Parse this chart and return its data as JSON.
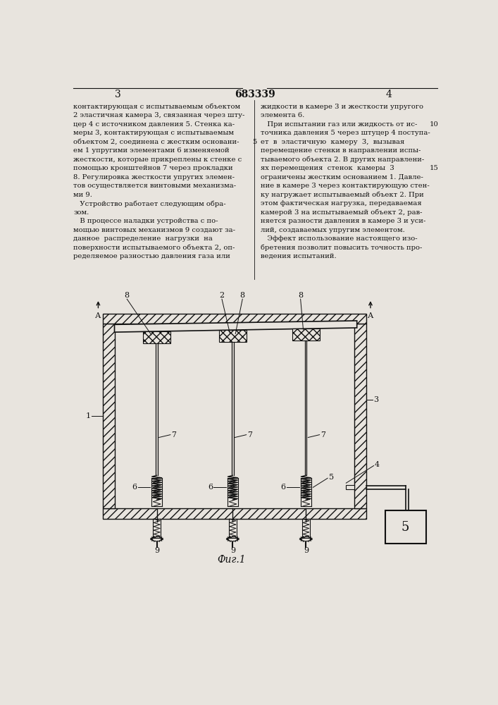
{
  "page_width": 7.07,
  "page_height": 10.0,
  "bg_color": "#e8e4de",
  "text_color": "#111111",
  "line_color": "#111111",
  "fig_caption": "Фиг.1",
  "left_text": [
    "контактирующая с испытываемым объектом",
    "2 эластичная камера 3, связанная через шту-",
    "цер 4 с источником давления 5. Стенка ка-",
    "меры 3, контактирующая с испытываемым",
    "объектом 2, соединена с жестким основани-",
    "ем 1 упругими элементами 6 изменяемой",
    "жесткости, которые прикреплены к стенке с",
    "помощью кронштейнов 7 через прокладки",
    "8. Регулировка жесткости упругих элемен-",
    "тов осуществляется винтовыми механизма-",
    "ми 9.",
    "   Устройство работает следующим обра-",
    "зом.",
    "   В процессе наладки устройства с по-",
    "мощью винтовых механизмов 9 создают за-",
    "данное  распределение  нагрузки  на",
    "поверхности испытываемого объекта 2, оп-",
    "ределяемое разностью давления газа или"
  ],
  "right_text": [
    "жидкости в камере 3 и жесткости упругого",
    "элемента 6.",
    "   При испытании газ или жидкость от ис-",
    "точника давления 5 через штуцер 4 поступа-",
    "ет  в  эластичную  камеру  3,  вызывая",
    "перемещение стенки в направлении испы-",
    "тываемого объекта 2. В других направлени-",
    "ях перемещения  стенок  камеры  3",
    "ограничены жестким основанием 1. Давле-",
    "ние в камере 3 через контактирующую стен-",
    "ку нагружает испытываемый объект 2. При",
    "этом фактическая нагрузка, передаваемая",
    "камерой 3 на испытываемый объект 2, рав-",
    "няется разности давления в камере 3 и уси-",
    "лий, создаваемых упругим элементом.",
    "   Эффект использование настоящего изо-",
    "бретения позволит повысить точность про-",
    "ведения испытаний."
  ]
}
